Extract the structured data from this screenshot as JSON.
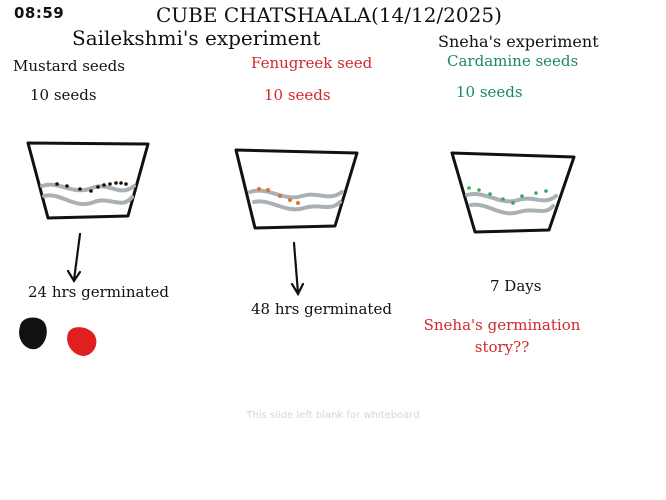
{
  "header": {
    "time": "08:59",
    "title": "CUBE CHATSHAALA(14/12/2025)"
  },
  "experiments": {
    "sailekshmi": {
      "heading": "Sailekshmi's experiment",
      "mustard": {
        "name": "Mustard seeds",
        "count": "10 seeds",
        "result": "24 hrs germinated",
        "color": "#111111"
      },
      "fenugreek": {
        "name": "Fenugreek seed",
        "count": "10 seeds",
        "result": "48 hrs germinated",
        "color": "#d0282e",
        "seed_color": "#e4722c"
      }
    },
    "sneha": {
      "heading": "Sneha's experiment",
      "cardamine": {
        "name": "Cardamine seeds",
        "count": "10 seeds",
        "result": "7 Days",
        "color": "#1b8a5a",
        "seed_color": "#3aa655"
      },
      "story": "Sneha's germination story??"
    }
  },
  "footer": {
    "note": "This slide left blank for whiteboard"
  },
  "colors": {
    "soil": "#a9b0b6",
    "outline": "#111111",
    "red_seed": "#e02020"
  }
}
